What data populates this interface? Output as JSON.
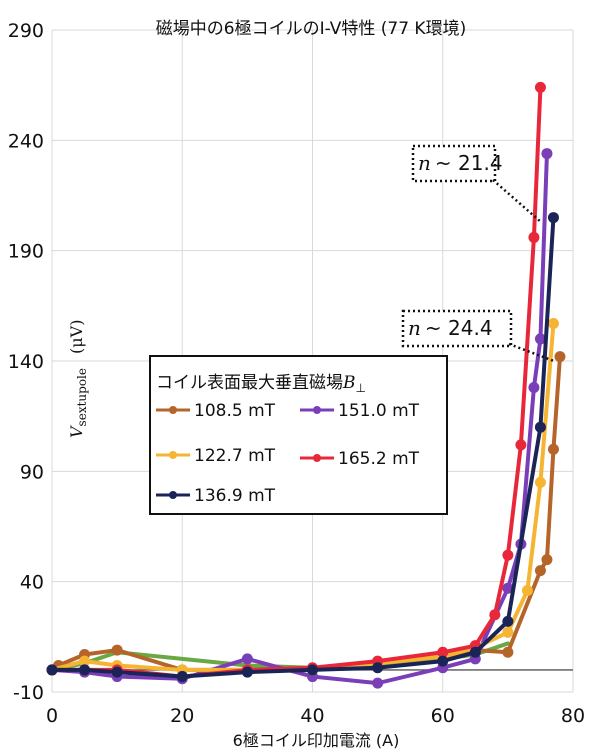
{
  "chart_data": {
    "type": "line",
    "title": "磁場中の6極コイルのI-V特性 (77 K環境)",
    "xlabel": "6極コイル印加電流 (A)",
    "ylabel": {
      "main": "V",
      "sub": "sextupole",
      "unit": "(μV)"
    },
    "xlim": [
      0,
      80
    ],
    "ylim": [
      -10,
      290
    ],
    "xticks": [
      "0",
      "20",
      "40",
      "60",
      "80"
    ],
    "yticks": [
      "-10",
      "40",
      "90",
      "140",
      "190",
      "240",
      "290"
    ],
    "grid": true,
    "legend": {
      "title": "コイル表面最大垂直磁場",
      "title_symbol": "B",
      "title_sub": "⊥",
      "placement": "center-left"
    },
    "series": [
      {
        "name": "108.5 mT",
        "color": "#b5652a",
        "x": [
          0,
          1,
          5,
          10,
          20,
          30,
          40,
          50,
          60,
          65,
          70,
          75,
          76,
          77,
          78
        ],
        "y": [
          0,
          2,
          7,
          9,
          0,
          0,
          0,
          3,
          6,
          9,
          8,
          45,
          50,
          100,
          142
        ]
      },
      {
        "name": "151.0 mT",
        "color": "#7a3fb8",
        "x": [
          0,
          5,
          10,
          20,
          30,
          40,
          50,
          60,
          65,
          70,
          72,
          74,
          75,
          76
        ],
        "y": [
          0,
          -1,
          -3,
          -4,
          5,
          -3,
          -6,
          1,
          5,
          37,
          57,
          128,
          150,
          234
        ]
      },
      {
        "name": "122.7 mT",
        "color": "#f5b533",
        "x": [
          0,
          5,
          10,
          20,
          30,
          40,
          50,
          60,
          65,
          70,
          73,
          75,
          77
        ],
        "y": [
          0,
          4,
          2,
          0,
          0,
          0,
          3,
          6,
          10,
          17,
          36,
          85,
          157
        ]
      },
      {
        "name": "165.2 mT",
        "color": "#e8283a",
        "x": [
          0,
          5,
          10,
          20,
          30,
          40,
          50,
          60,
          65,
          68,
          70,
          72,
          74,
          75
        ],
        "y": [
          0,
          0,
          0,
          -3,
          0,
          1,
          4,
          8,
          11,
          25,
          52,
          102,
          196,
          264
        ]
      },
      {
        "name": "136.9 mT",
        "color": "#1b2456",
        "x": [
          0,
          5,
          10,
          20,
          30,
          40,
          50,
          60,
          65,
          70,
          75,
          77
        ],
        "y": [
          0,
          0,
          -1,
          -3,
          -1,
          0,
          1,
          4,
          8,
          22,
          110,
          205
        ]
      }
    ],
    "extra_line": {
      "color": "#6aa844",
      "x": [
        0,
        5,
        10,
        20,
        30,
        40,
        50,
        60,
        65,
        70
      ],
      "y": [
        0,
        3,
        8,
        5,
        2,
        1,
        2,
        5,
        7,
        12
      ]
    },
    "annotations": [
      {
        "prefix": "n",
        "text": "~ 21.4",
        "target": [
          76,
          203
        ]
      },
      {
        "prefix": "n",
        "text": "~ 24.4",
        "target": [
          78,
          140
        ]
      }
    ]
  }
}
